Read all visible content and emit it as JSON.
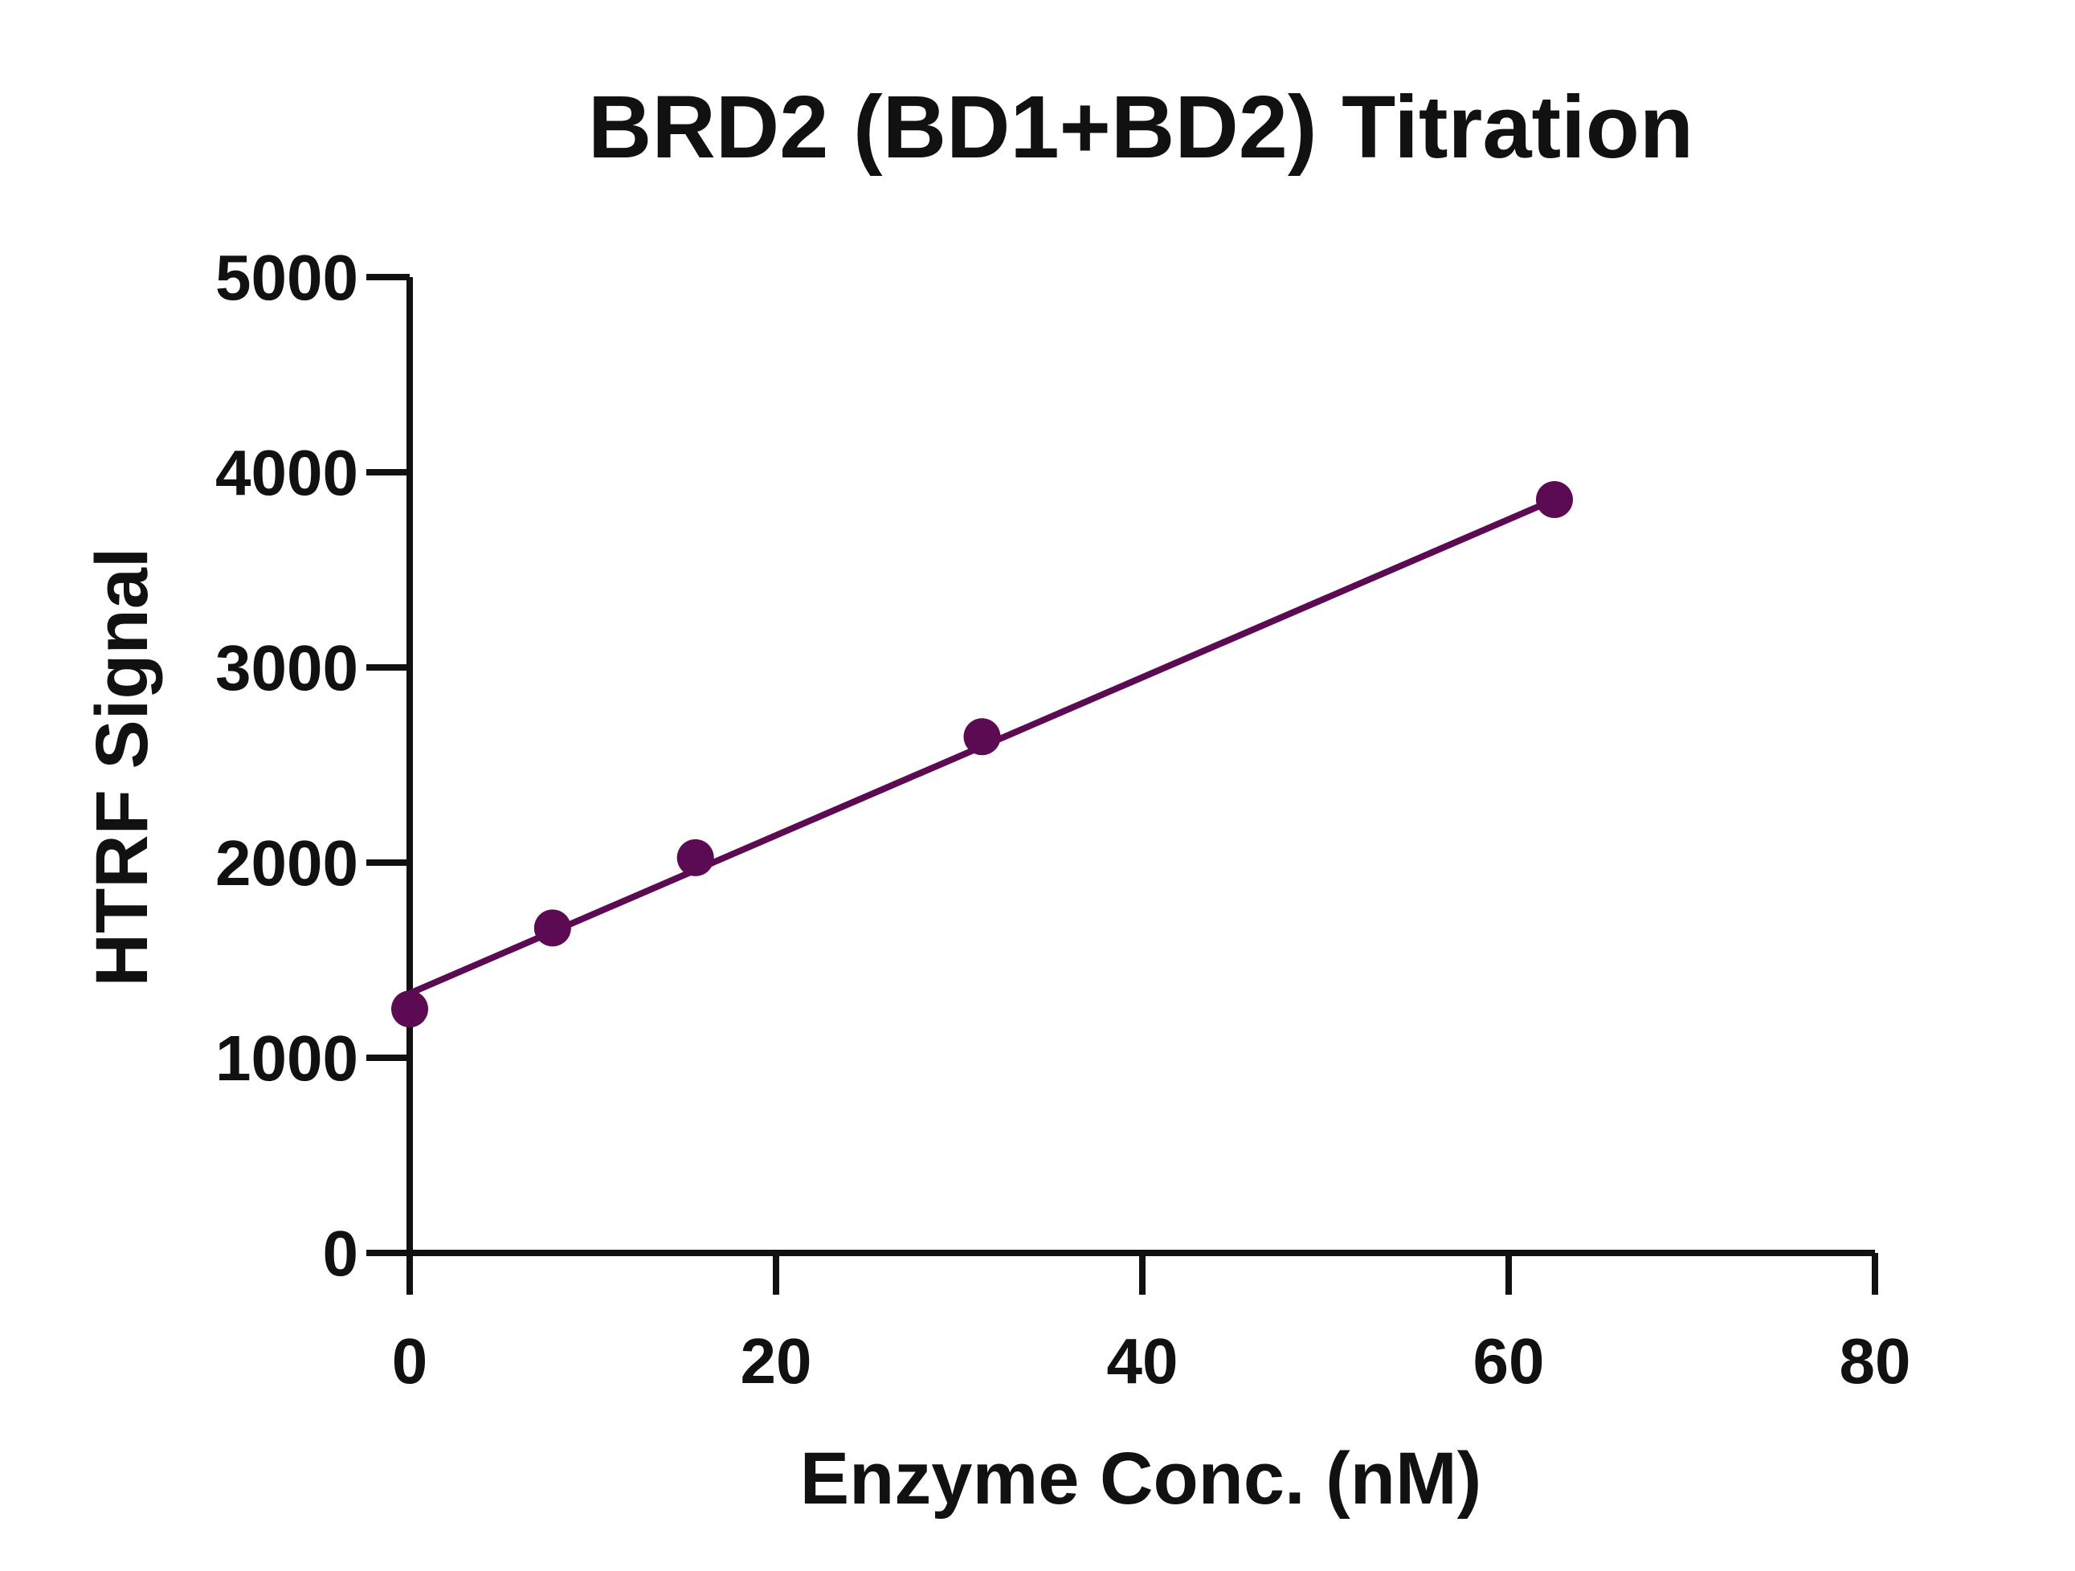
{
  "chart_data": {
    "type": "line",
    "title": "BRD2 (BD1+BD2) Titration",
    "xlabel": "Enzyme Conc. (nM)",
    "ylabel": "HTRF Signal",
    "xlim": [
      0,
      80
    ],
    "ylim": [
      0,
      5000
    ],
    "x_ticks": [
      "0",
      "20",
      "40",
      "60",
      "80"
    ],
    "y_ticks": [
      "0",
      "1000",
      "2000",
      "3000",
      "4000",
      "5000"
    ],
    "grid": false,
    "legend": "none",
    "series": [
      {
        "color": "#5c0a52",
        "x": [
          0,
          7.8,
          15.6,
          31.25,
          62.5
        ],
        "y": [
          1250,
          1665,
          2025,
          2645,
          3860
        ],
        "fit_line": {
          "x": [
            0,
            62.5
          ],
          "y": [
            1330,
            3860
          ]
        }
      }
    ]
  }
}
